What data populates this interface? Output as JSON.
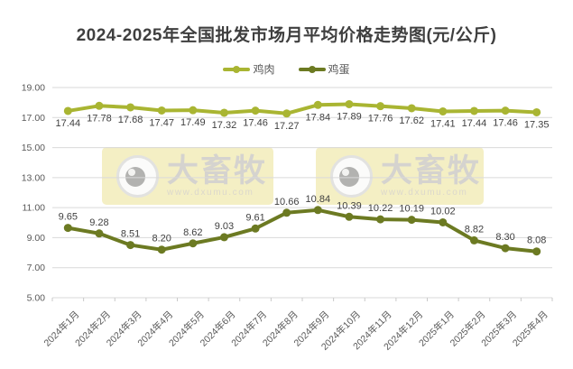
{
  "title": "2024-2025年全国批发市场月平均价格走势图(元/公斤)",
  "legend": [
    {
      "label": "鸡肉",
      "color": "#a9b532"
    },
    {
      "label": "鸡蛋",
      "color": "#6c7a22"
    }
  ],
  "watermark": {
    "text": "大畜牧",
    "url": "www.dxumu.com"
  },
  "colors": {
    "chicken_line": "#a9b532",
    "egg_line": "#6c7a22",
    "gridline": "#d9d9d9",
    "axis_line": "#c9c9c9",
    "axis_text": "#595959",
    "data_label_text": "#404040",
    "title_text": "#3f3f3f",
    "watermark_bg": "#f4efc4"
  },
  "chart_data": {
    "type": "line",
    "title": "2024-2025年全国批发市场月平均价格走势图(元/公斤)",
    "categories": [
      "2024年1月",
      "2024年2月",
      "2024年3月",
      "2024年4月",
      "2024年5月",
      "2024年6月",
      "2024年7月",
      "2024年8月",
      "2024年9月",
      "2024年10月",
      "2024年11月",
      "2024年12月",
      "2025年1月",
      "2025年2月",
      "2025年3月",
      "2025年4月"
    ],
    "series": [
      {
        "name": "鸡肉",
        "color": "#a9b532",
        "label_position": "below",
        "values": [
          17.44,
          17.78,
          17.68,
          17.47,
          17.49,
          17.32,
          17.46,
          17.27,
          17.84,
          17.89,
          17.76,
          17.62,
          17.41,
          17.44,
          17.46,
          17.35
        ]
      },
      {
        "name": "鸡蛋",
        "color": "#6c7a22",
        "label_position": "above",
        "values": [
          9.65,
          9.28,
          8.51,
          8.2,
          8.62,
          9.03,
          9.61,
          10.66,
          10.84,
          10.39,
          10.22,
          10.19,
          10.02,
          8.82,
          8.3,
          8.08
        ]
      }
    ],
    "ylim": [
      5,
      19
    ],
    "ytick_labels": [
      "19.00",
      "17.00",
      "15.00",
      "13.00",
      "11.00",
      "9.00",
      "7.00",
      "5.00"
    ],
    "xlabel": "",
    "ylabel": "",
    "grid": true,
    "data_labels": true,
    "legend_position": "top"
  }
}
